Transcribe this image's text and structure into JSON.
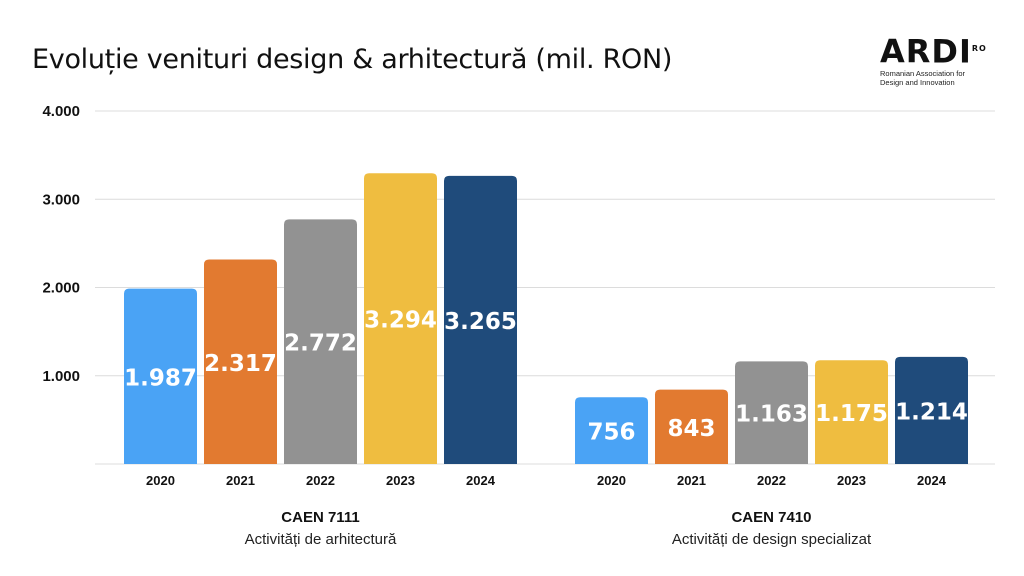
{
  "chart_data": {
    "type": "bar",
    "title": "Evoluție venituri design & arhitectură (mil. RON)",
    "ylim": [
      0,
      4000
    ],
    "yticks": [
      "1.000",
      "2.000",
      "3.000",
      "4.000"
    ],
    "ytick_values": [
      1000,
      2000,
      3000,
      4000
    ],
    "grid": true,
    "categories": [
      "2020",
      "2021",
      "2022",
      "2023",
      "2024"
    ],
    "colors": [
      "#4aa3f5",
      "#e27a30",
      "#929292",
      "#efbd40",
      "#1f4b7b"
    ],
    "groups": [
      {
        "name": "CAEN 7111",
        "subtitle": "Activități de arhitectură",
        "values": [
          1987,
          2317,
          2772,
          3294,
          3265
        ],
        "labels": [
          "1.987",
          "2.317",
          "2.772",
          "3.294",
          "3.265"
        ]
      },
      {
        "name": "CAEN 7410",
        "subtitle": "Activități de design specializat",
        "values": [
          756,
          843,
          1163,
          1175,
          1214
        ],
        "labels": [
          "756",
          "843",
          "1.163",
          "1.175",
          "1.214"
        ]
      }
    ]
  },
  "logo": {
    "mark": "ARDI",
    "sup": "RO",
    "line1": "Romanian Association for",
    "line2": "Design and Innovation"
  }
}
